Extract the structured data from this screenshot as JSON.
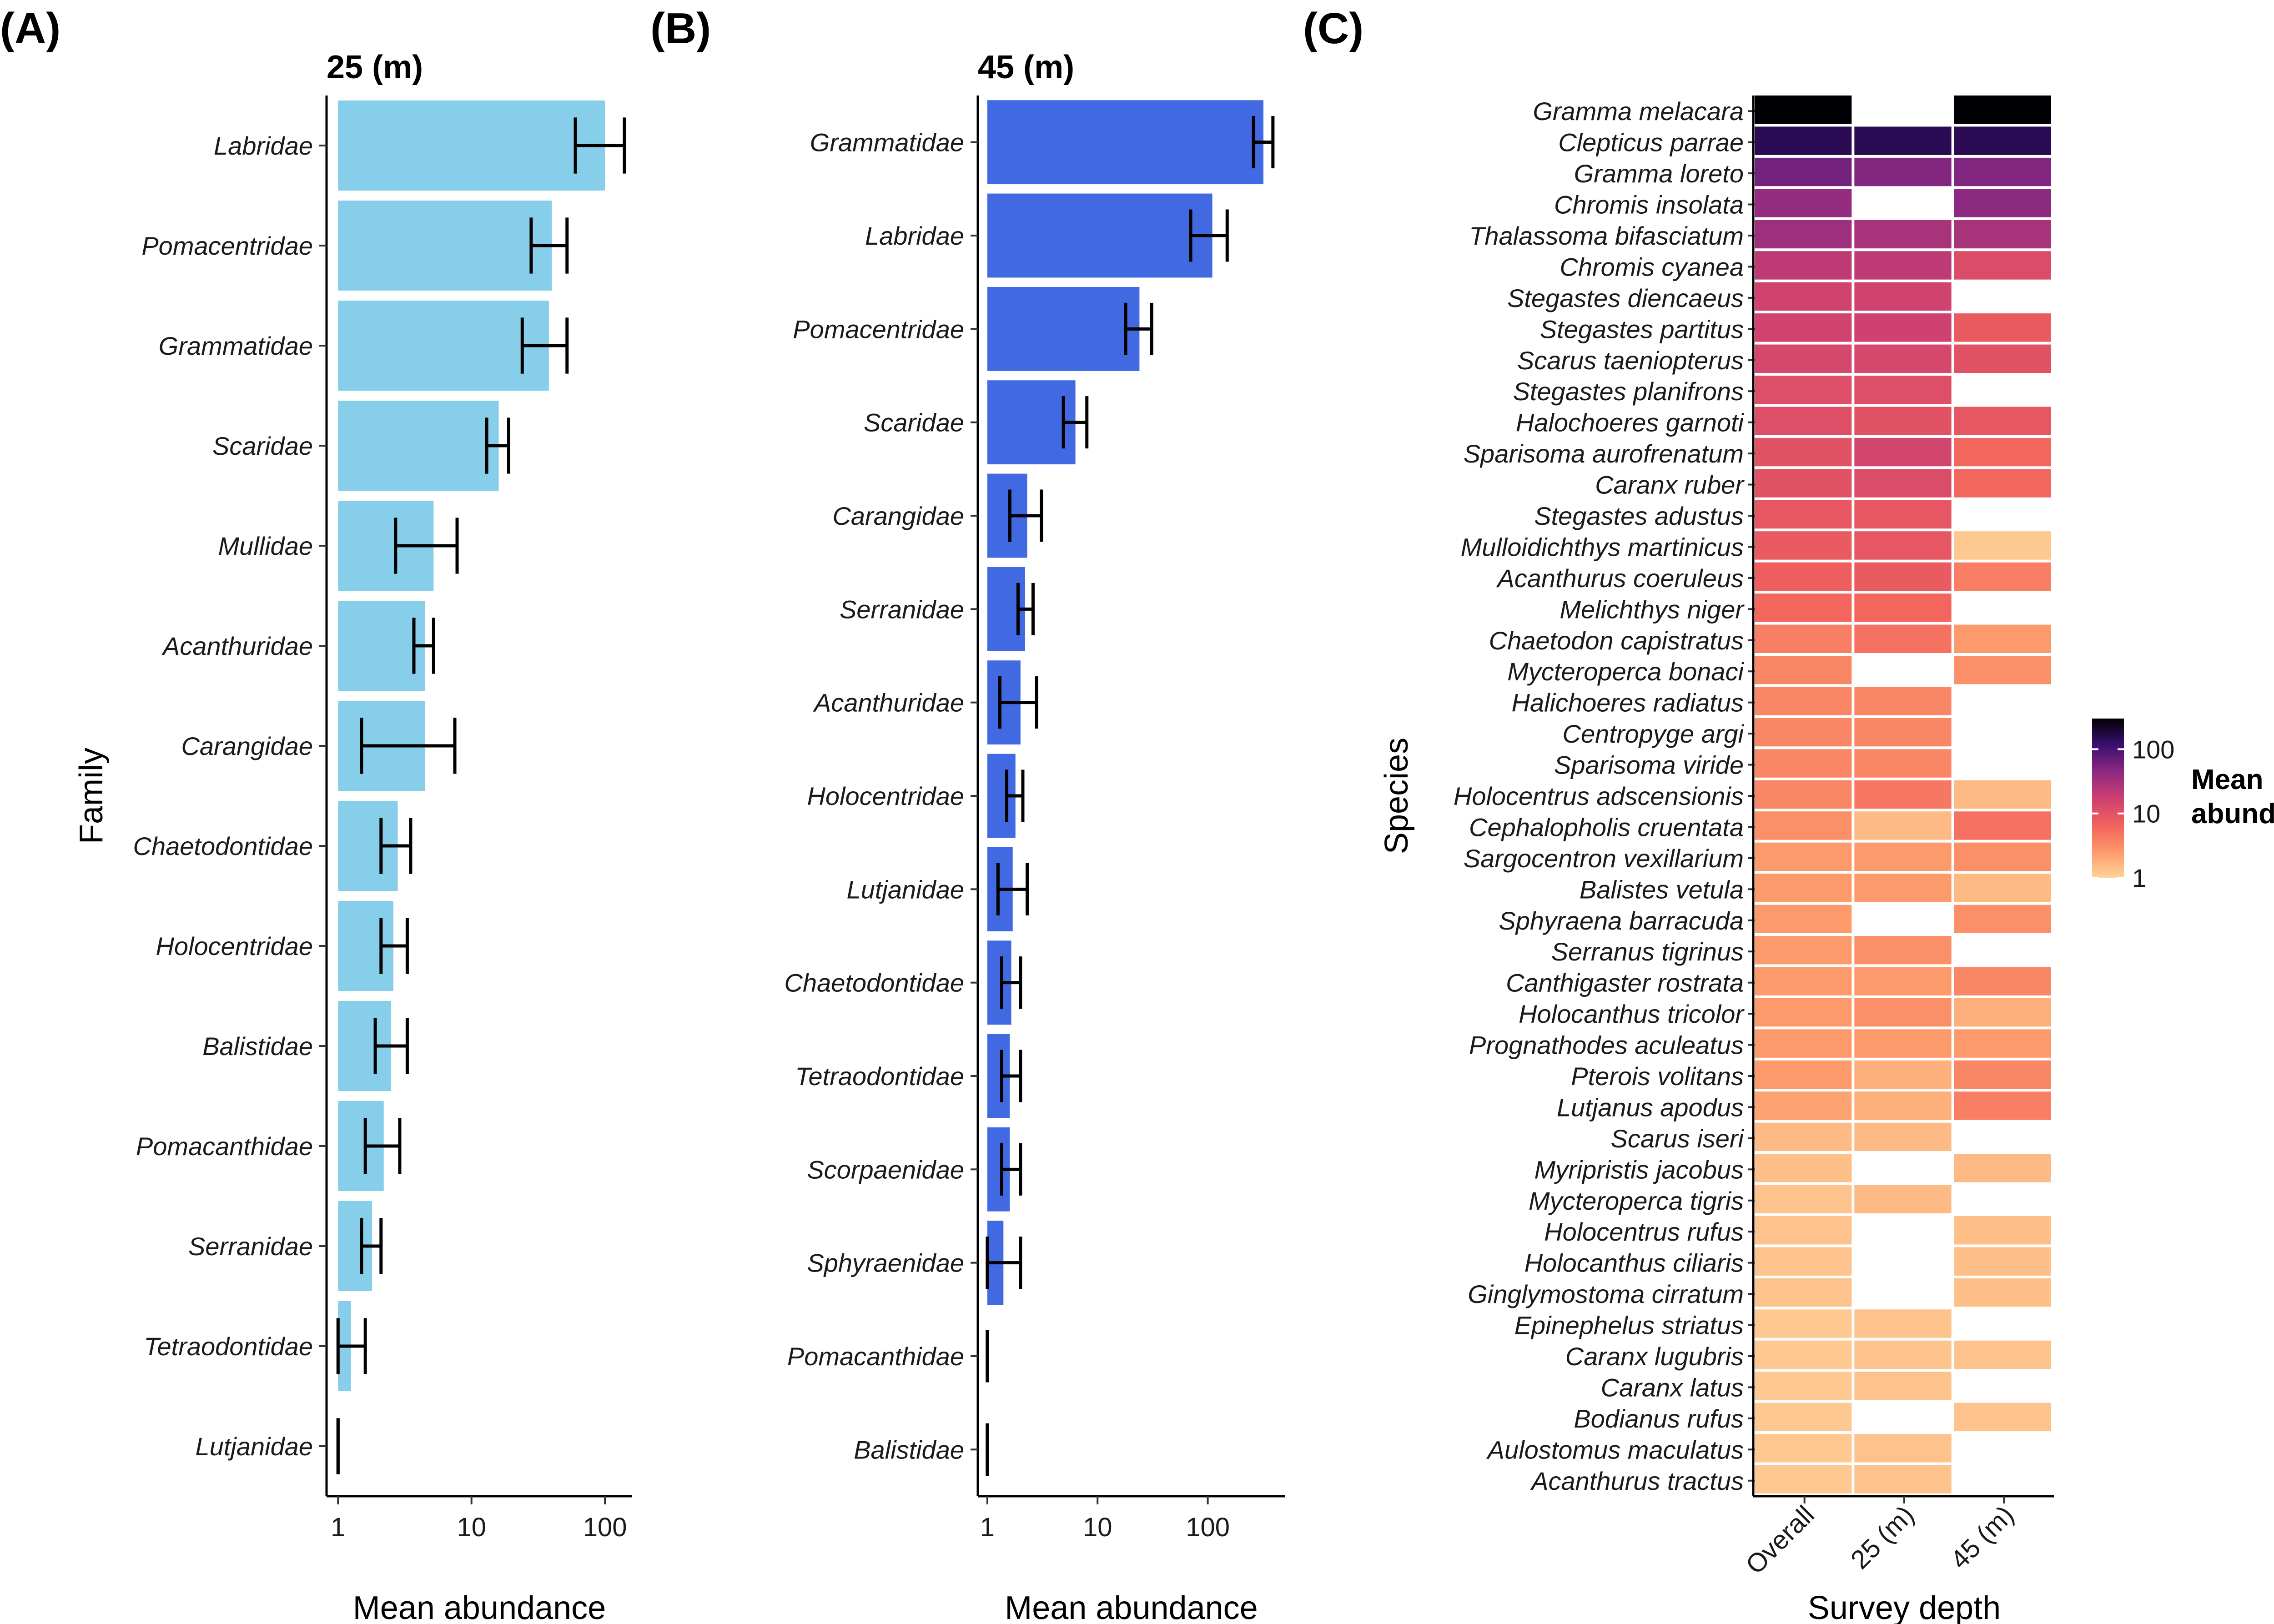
{
  "chart_data": [
    {
      "id": "A",
      "type": "bar",
      "orientation": "horizontal",
      "panel_label": "(A)",
      "title": "25 (m)",
      "xlabel": "Mean abundance",
      "ylabel": "Family",
      "x_scale": "log10",
      "xlim": [
        0.82,
        160
      ],
      "x_ticks": [
        1,
        10,
        100
      ],
      "x_tick_labels": [
        "1",
        "10",
        "100"
      ],
      "bar_color": "#87CEEB",
      "categories": [
        "Labridae",
        "Pomacentridae",
        "Grammatidae",
        "Scaridae",
        "Mullidae",
        "Acanthuridae",
        "Carangidae",
        "Chaetodontidae",
        "Holocentridae",
        "Balistidae",
        "Pomacanthidae",
        "Serranidae",
        "Tetraodontidae",
        "Lutjanidae"
      ],
      "values": [
        100,
        40,
        38,
        16,
        5.2,
        4.5,
        4.5,
        2.8,
        2.6,
        2.5,
        2.2,
        1.8,
        1.25,
        1
      ],
      "err_low": [
        60,
        28,
        24,
        13,
        2.7,
        3.7,
        1.5,
        2.1,
        2.1,
        1.9,
        1.6,
        1.5,
        1.0,
        1
      ],
      "err_high": [
        140,
        52,
        52,
        19,
        7.8,
        5.2,
        7.5,
        3.5,
        3.3,
        3.3,
        2.9,
        2.1,
        1.6,
        1
      ]
    },
    {
      "id": "B",
      "type": "bar",
      "orientation": "horizontal",
      "panel_label": "(B)",
      "title": "45 (m)",
      "xlabel": "Mean abundance",
      "ylabel": "",
      "x_scale": "log10",
      "xlim": [
        0.82,
        500
      ],
      "x_ticks": [
        1,
        10,
        100
      ],
      "x_tick_labels": [
        "1",
        "10",
        "100"
      ],
      "bar_color": "#4169E1",
      "categories": [
        "Grammatidae",
        "Labridae",
        "Pomacentridae",
        "Scaridae",
        "Carangidae",
        "Serranidae",
        "Acanthuridae",
        "Holocentridae",
        "Lutjanidae",
        "Chaetodontidae",
        "Tetraodontidae",
        "Scorpaenidae",
        "Sphyraenidae",
        "Pomacanthidae",
        "Balistidae"
      ],
      "values": [
        320,
        110,
        24,
        6.3,
        2.3,
        2.2,
        2.0,
        1.8,
        1.7,
        1.65,
        1.6,
        1.6,
        1.4,
        1,
        1
      ],
      "err_low": [
        260,
        70,
        18,
        4.9,
        1.6,
        1.9,
        1.3,
        1.5,
        1.25,
        1.35,
        1.35,
        1.35,
        1.0,
        1,
        1
      ],
      "err_high": [
        390,
        150,
        31,
        8.0,
        3.1,
        2.6,
        2.8,
        2.1,
        2.3,
        2.0,
        2.0,
        2.0,
        2.0,
        1,
        1
      ]
    },
    {
      "id": "C",
      "type": "heatmap",
      "panel_label": "(C)",
      "xlabel": "Survey depth",
      "ylabel": "Species",
      "columns": [
        "Overall",
        "25 (m)",
        "45 (m)"
      ],
      "legend": {
        "title_line1": "Mean",
        "title_line2": "abundance",
        "scale": "log10",
        "ticks": [
          1,
          10,
          100
        ],
        "tick_labels": [
          "1",
          "10",
          "100"
        ],
        "range": [
          1,
          300
        ]
      },
      "colors": {
        "low": "#FED49A",
        "mid_low": "#FD9869",
        "mid": "#F1605D",
        "mid_high": "#CD4071",
        "high_a": "#8C2981",
        "high_b": "#3B0F70",
        "max": "#000004"
      },
      "rows": [
        {
          "species": "Gramma melacara",
          "values": [
            300,
            null,
            300
          ]
        },
        {
          "species": "Clepticus parrae",
          "values": [
            150,
            150,
            150
          ]
        },
        {
          "species": "Gramma loreto",
          "values": [
            60,
            50,
            50
          ]
        },
        {
          "species": "Chromis insolata",
          "values": [
            40,
            null,
            45
          ]
        },
        {
          "species": "Thalassoma bifasciatum",
          "values": [
            35,
            30,
            30
          ]
        },
        {
          "species": "Chromis cyanea",
          "values": [
            22,
            22,
            12
          ]
        },
        {
          "species": "Stegastes diencaeus",
          "values": [
            16,
            16,
            null
          ]
        },
        {
          "species": "Stegastes partitus",
          "values": [
            16,
            17,
            8
          ]
        },
        {
          "species": "Scarus taeniopterus",
          "values": [
            14,
            14,
            10
          ]
        },
        {
          "species": "Stegastes planifrons",
          "values": [
            11,
            11,
            null
          ]
        },
        {
          "species": "Halochoeres garnoti",
          "values": [
            11,
            10,
            9
          ]
        },
        {
          "species": "Sparisoma aurofrenatum",
          "values": [
            10,
            15,
            6
          ]
        },
        {
          "species": "Caranx ruber",
          "values": [
            10,
            12,
            6
          ]
        },
        {
          "species": "Stegastes adustus",
          "values": [
            9,
            9,
            null
          ]
        },
        {
          "species": "Mulloidichthys martinicus",
          "values": [
            8,
            9,
            1.2
          ]
        },
        {
          "species": "Acanthurus coeruleus",
          "values": [
            7,
            8,
            4
          ]
        },
        {
          "species": "Melichthys niger",
          "values": [
            6,
            6,
            null
          ]
        },
        {
          "species": "Chaetodon capistratus",
          "values": [
            4,
            5,
            2.5
          ]
        },
        {
          "species": "Mycteroperca bonaci",
          "values": [
            3.5,
            null,
            3
          ]
        },
        {
          "species": "Halichoeres radiatus",
          "values": [
            3.5,
            3.5,
            null
          ]
        },
        {
          "species": "Centropyge argi",
          "values": [
            3.5,
            3.5,
            null
          ]
        },
        {
          "species": "Sparisoma viride",
          "values": [
            3.5,
            3.5,
            null
          ]
        },
        {
          "species": "Holocentrus adscensionis",
          "values": [
            3.5,
            4.5,
            1.5
          ]
        },
        {
          "species": "Cephalopholis cruentata",
          "values": [
            3,
            1.5,
            5
          ]
        },
        {
          "species": "Sargocentron vexillarium",
          "values": [
            2.5,
            2.5,
            3
          ]
        },
        {
          "species": "Balistes vetula",
          "values": [
            2.5,
            2.5,
            1.5
          ]
        },
        {
          "species": "Sphyraena barracuda",
          "values": [
            2.5,
            null,
            3
          ]
        },
        {
          "species": "Serranus tigrinus",
          "values": [
            2.5,
            3,
            null
          ]
        },
        {
          "species": "Canthigaster rostrata",
          "values": [
            2.5,
            2.5,
            3.5
          ]
        },
        {
          "species": "Holocanthus tricolor",
          "values": [
            2.5,
            3,
            1.8
          ]
        },
        {
          "species": "Prognathodes aculeatus",
          "values": [
            2.5,
            2.5,
            2.5
          ]
        },
        {
          "species": "Pterois volitans",
          "values": [
            2.5,
            1.8,
            3.5
          ]
        },
        {
          "species": "Lutjanus apodus",
          "values": [
            2.2,
            1.8,
            4
          ]
        },
        {
          "species": "Scarus iseri",
          "values": [
            1.5,
            1.5,
            null
          ]
        },
        {
          "species": "Myripristis jacobus",
          "values": [
            1.4,
            null,
            1.5
          ]
        },
        {
          "species": "Mycteroperca tigris",
          "values": [
            1.3,
            1.5,
            null
          ]
        },
        {
          "species": "Holocentrus rufus",
          "values": [
            1.3,
            null,
            1.4
          ]
        },
        {
          "species": "Holocanthus ciliaris",
          "values": [
            1.3,
            null,
            1.4
          ]
        },
        {
          "species": "Ginglymostoma cirratum",
          "values": [
            1.3,
            null,
            1.4
          ]
        },
        {
          "species": "Epinephelus striatus",
          "values": [
            1.2,
            1.3,
            null
          ]
        },
        {
          "species": "Caranx lugubris",
          "values": [
            1.2,
            1.3,
            1.3
          ]
        },
        {
          "species": "Caranx latus",
          "values": [
            1.2,
            1.3,
            null
          ]
        },
        {
          "species": "Bodianus rufus",
          "values": [
            1.2,
            null,
            1.3
          ]
        },
        {
          "species": "Aulostomus maculatus",
          "values": [
            1.2,
            1.3,
            null
          ]
        },
        {
          "species": "Acanthurus tractus",
          "values": [
            1.2,
            1.3,
            null
          ]
        }
      ]
    }
  ]
}
